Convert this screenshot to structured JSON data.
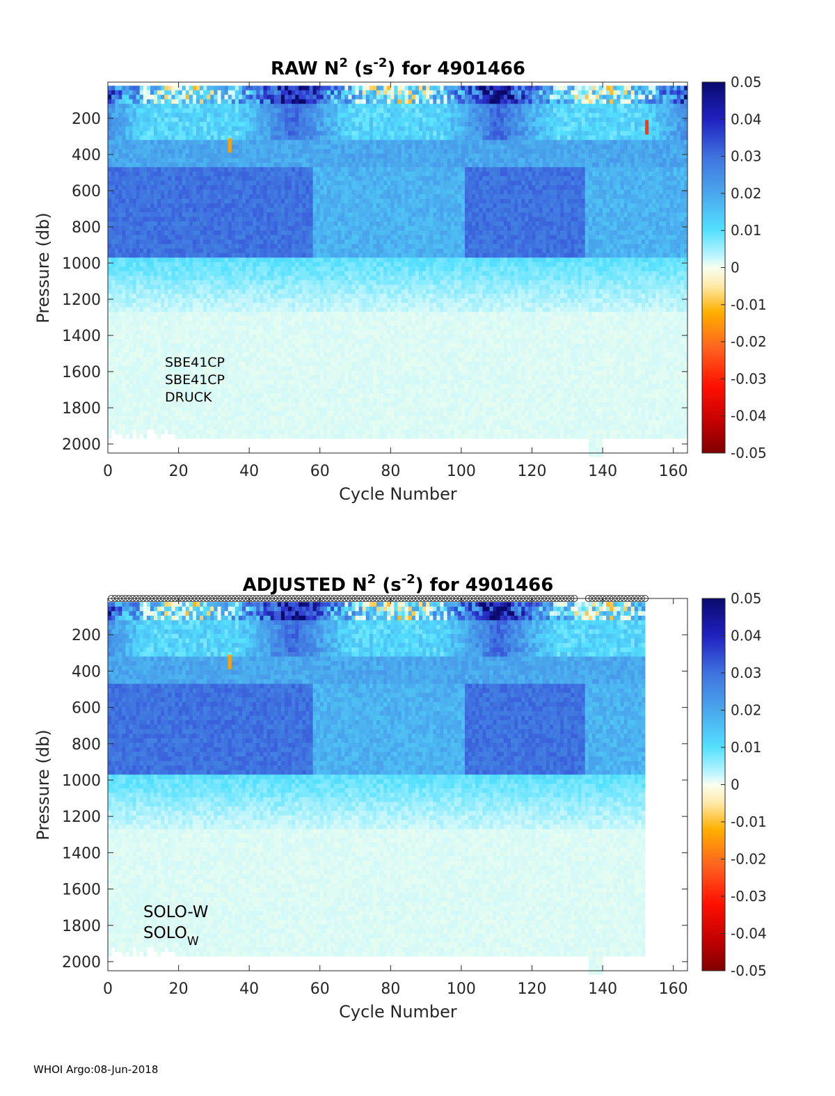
{
  "footer": "WHOI Argo:08-Jun-2018",
  "colors": {
    "colormap_positive": [
      "#f0fff0",
      "#bff5ff",
      "#54e0ff",
      "#4aa7ec",
      "#3f72df",
      "#2c33cf",
      "#0a0a6e"
    ],
    "colormap_negative": [
      "#f5f5dc",
      "#ffd966",
      "#ffa500",
      "#ff4500",
      "#e00000",
      "#800000"
    ],
    "marker_stroke": "#000000"
  },
  "chart_data": [
    {
      "type": "heatmap",
      "title": "RAW N",
      "title_sup1": "2",
      "title_mid": " (s",
      "title_sup2": "-2",
      "title_end": ") for 4901466",
      "xlabel": "Cycle Number",
      "ylabel": "Pressure (db)",
      "xlim": [
        0,
        164
      ],
      "ylim": [
        2050,
        0
      ],
      "xticks": [
        "0",
        "20",
        "40",
        "60",
        "80",
        "100",
        "120",
        "140",
        "160"
      ],
      "yticks": [
        "200",
        "400",
        "600",
        "800",
        "1000",
        "1200",
        "1400",
        "1600",
        "1800",
        "2000"
      ],
      "colorbar_ticks": [
        "0.05",
        "0.04",
        "0.03",
        "0.02",
        "0.01",
        "0",
        "-0.01",
        "-0.02",
        "-0.03",
        "-0.04",
        "-0.05"
      ],
      "clim": [
        -0.05,
        0.05
      ],
      "last_cycle": 164,
      "annotations": [
        "SBE41CP",
        "SBE41CP",
        "DRUCK"
      ],
      "anomalies": [
        {
          "cycle": 34,
          "pressure": 350,
          "value": -0.012
        },
        {
          "cycle": 152,
          "pressure": 250,
          "value": -0.025
        }
      ]
    },
    {
      "type": "heatmap",
      "title": "ADJUSTED N",
      "title_sup1": "2",
      "title_mid": " (s",
      "title_sup2": "-2",
      "title_end": ") for 4901466",
      "xlabel": "Cycle Number",
      "ylabel": "Pressure (db)",
      "xlim": [
        0,
        164
      ],
      "ylim": [
        2050,
        0
      ],
      "xticks": [
        "0",
        "20",
        "40",
        "60",
        "80",
        "100",
        "120",
        "140",
        "160"
      ],
      "yticks": [
        "200",
        "400",
        "600",
        "800",
        "1000",
        "1200",
        "1400",
        "1600",
        "1800",
        "2000"
      ],
      "colorbar_ticks": [
        "0.05",
        "0.04",
        "0.03",
        "0.02",
        "0.01",
        "0",
        "-0.01",
        "-0.02",
        "-0.03",
        "-0.04",
        "-0.05"
      ],
      "clim": [
        -0.05,
        0.05
      ],
      "last_cycle": 152,
      "annotations": [
        "SOLO-W",
        "SOLO",
        "W"
      ],
      "markers_pressure": 0,
      "anomalies": [
        {
          "cycle": 34,
          "pressure": 350,
          "value": -0.012
        }
      ]
    }
  ]
}
